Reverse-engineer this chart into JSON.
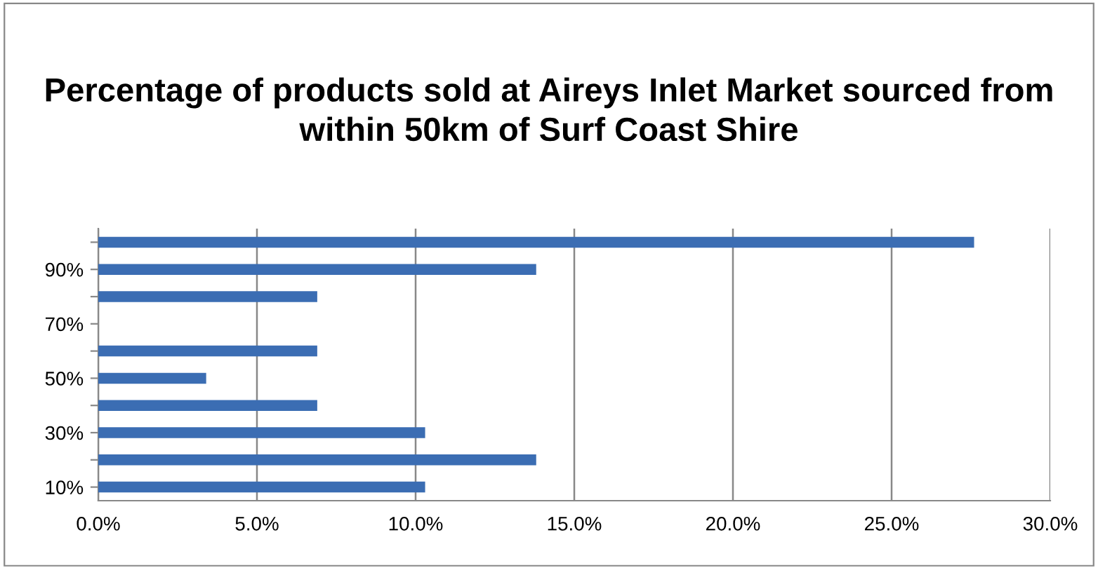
{
  "chart_data": {
    "type": "bar",
    "orientation": "horizontal",
    "title": "Percentage of products sold at Aireys Inlet Market sourced from within 50km of Surf Coast Shire",
    "categories": [
      null,
      "90%",
      null,
      "70%",
      null,
      "50%",
      null,
      "30%",
      null,
      "10%"
    ],
    "values": [
      27.6,
      13.8,
      6.9,
      0,
      6.9,
      3.4,
      6.9,
      10.3,
      13.8,
      10.3
    ],
    "color": "#3b6db3",
    "xlim": [
      0,
      30
    ],
    "xticks": [
      {
        "value": 0,
        "label": "0.0%"
      },
      {
        "value": 5,
        "label": "5.0%"
      },
      {
        "value": 10,
        "label": "10.0%"
      },
      {
        "value": 15,
        "label": "15.0%"
      },
      {
        "value": 20,
        "label": "20.0%"
      },
      {
        "value": 25,
        "label": "25.0%"
      },
      {
        "value": 30,
        "label": "30.0%"
      }
    ],
    "grid": "x"
  }
}
